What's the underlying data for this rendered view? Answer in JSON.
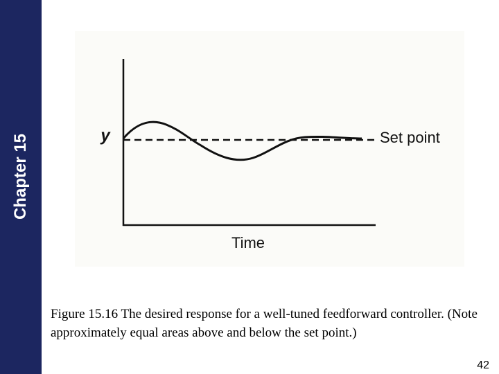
{
  "sidebar": {
    "label": "Chapter 15"
  },
  "figure": {
    "y_label": "y",
    "set_point_label": "Set point",
    "x_label": "Time"
  },
  "caption": "Figure 15.16 The desired response for a well-tuned feedforward controller. (Note approximately equal areas above and below the set point.)",
  "page_number": "42"
}
